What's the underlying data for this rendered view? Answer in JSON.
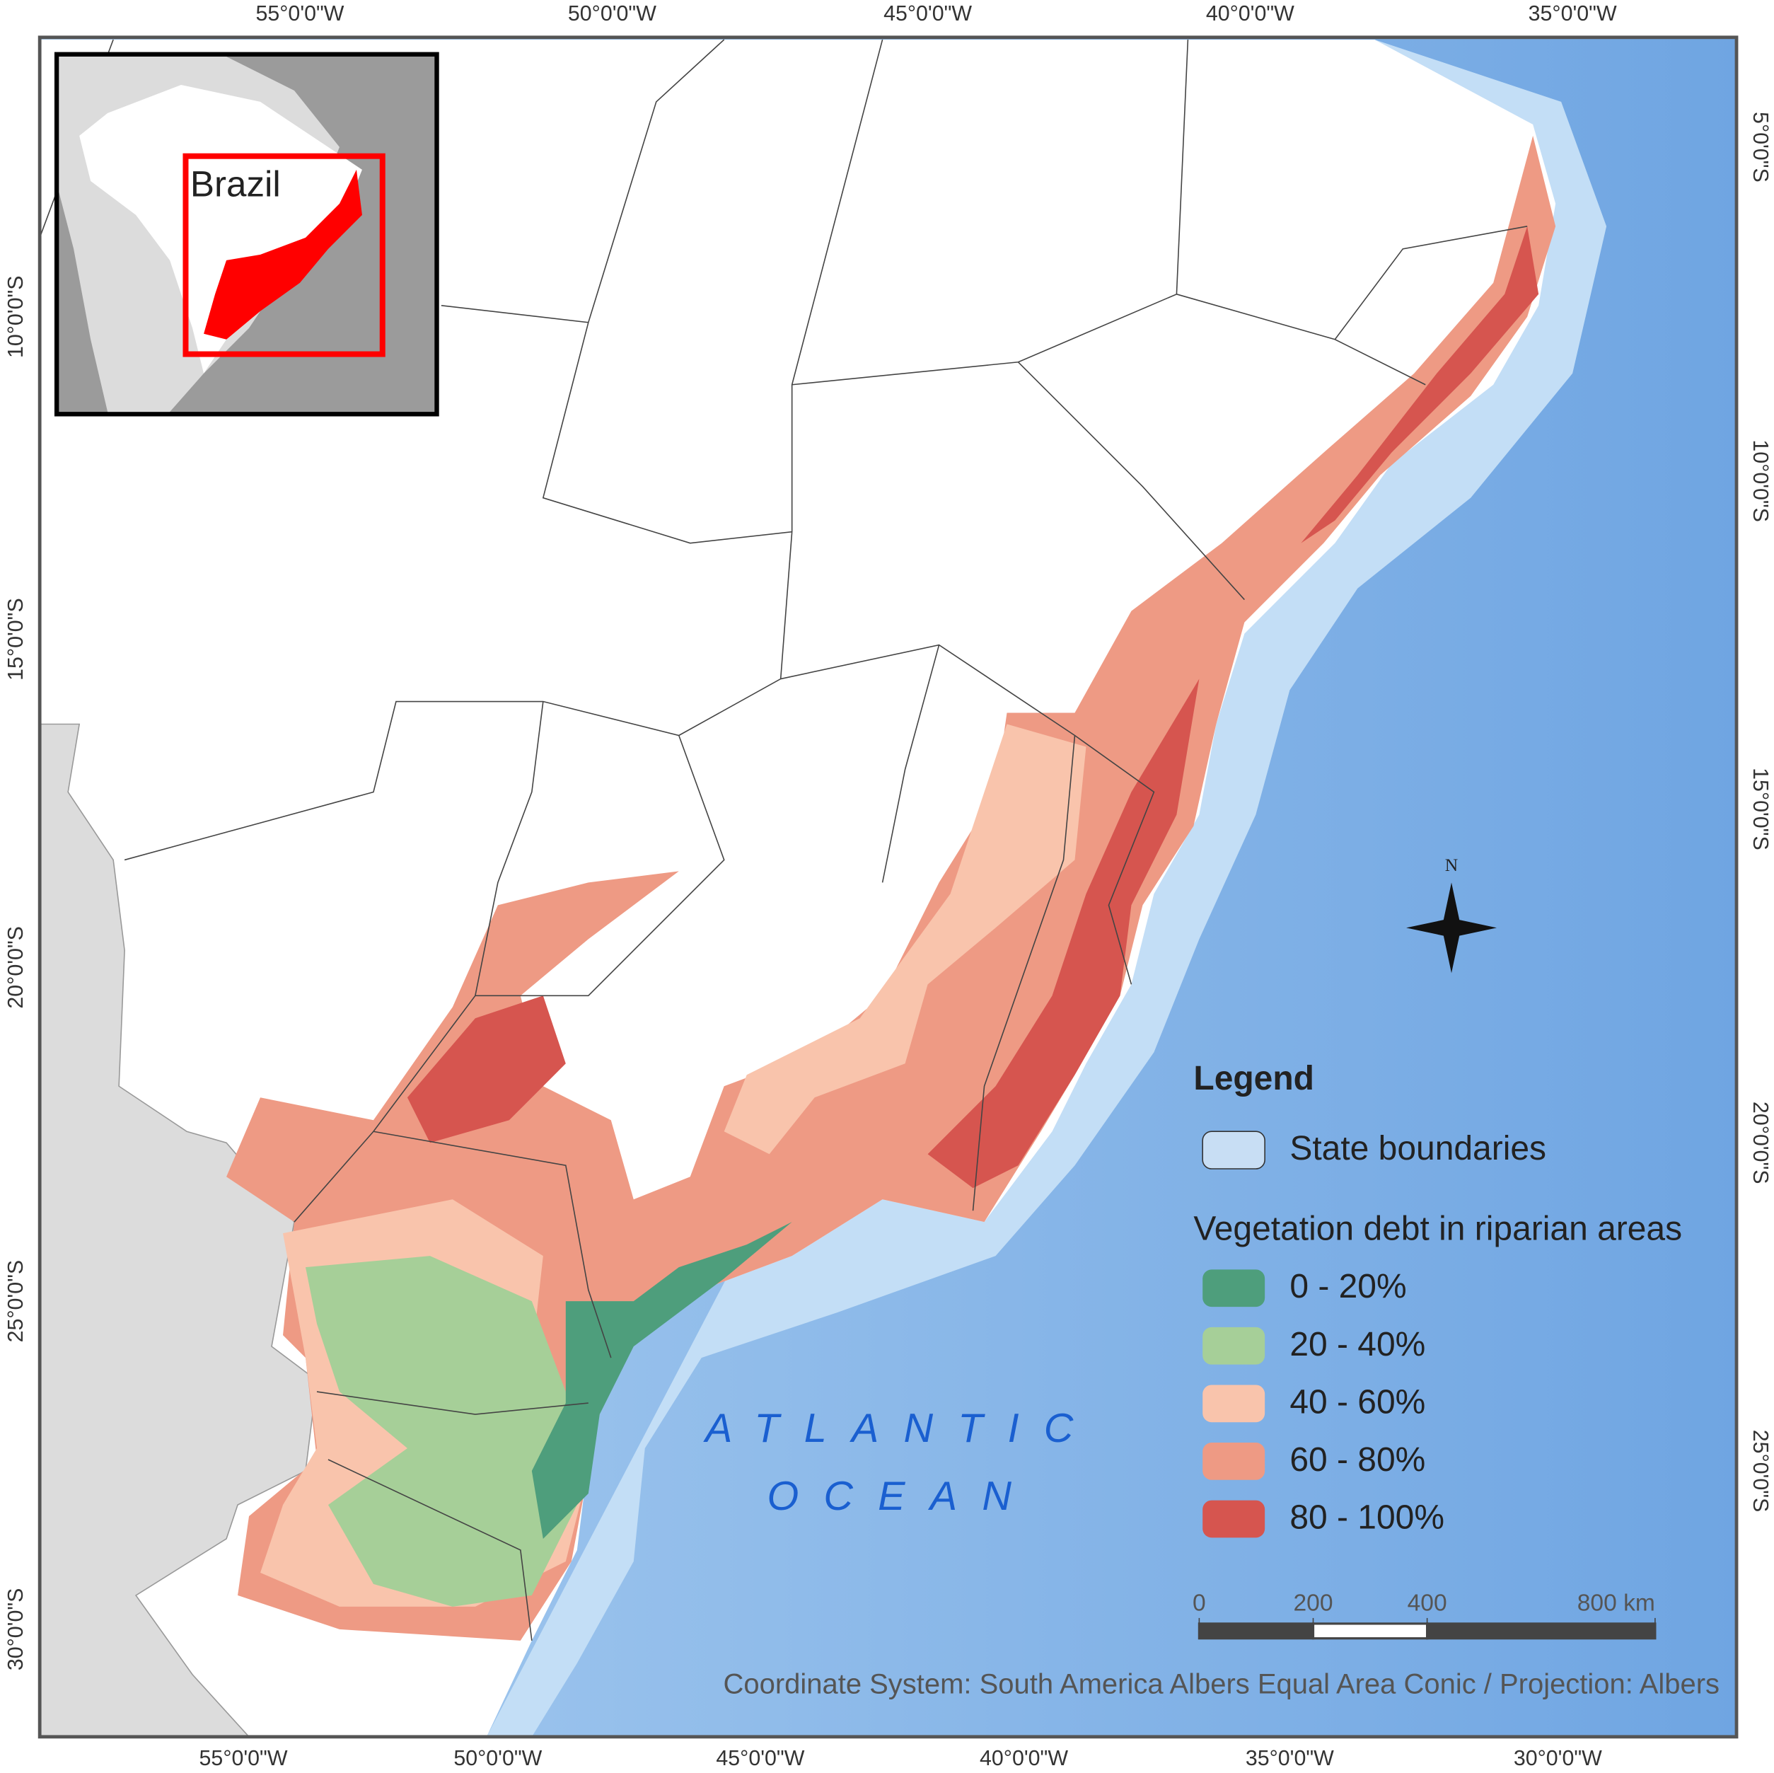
{
  "grid_labels": {
    "top": [
      "55°0'0\"W",
      "50°0'0\"W",
      "45°0'0\"W",
      "40°0'0\"W",
      "35°0'0\"W"
    ],
    "bottom": [
      "55°0'0\"W",
      "50°0'0\"W",
      "45°0'0\"W",
      "40°0'0\"W",
      "35°0'0\"W",
      "30°0'0\"W"
    ],
    "left": [
      "10°0'0\"S",
      "15°0'0\"S",
      "20°0'0\"S",
      "25°0'0\"S",
      "30°0'0\"S"
    ],
    "right": [
      "5°0'0\"S",
      "10°0'0\"S",
      "15°0'0\"S",
      "20°0'0\"S",
      "25°0'0\"S"
    ]
  },
  "inset": {
    "label": "Brazil"
  },
  "ocean_label": [
    "ATLANTIC",
    "OCEAN"
  ],
  "north_arrow": {
    "label": "N"
  },
  "legend": {
    "title": "Legend",
    "boundary_label": "State boundaries",
    "subtitle": "Vegetation debt in riparian areas",
    "classes": [
      {
        "label": "0 - 20%",
        "color": "#4e9e7c"
      },
      {
        "label": "20 - 40%",
        "color": "#a6cf98"
      },
      {
        "label": "40 - 60%",
        "color": "#f9c4ac"
      },
      {
        "label": "60 - 80%",
        "color": "#ee9a84"
      },
      {
        "label": "80 - 100%",
        "color": "#d6554f"
      }
    ]
  },
  "scale_bar": {
    "ticks": [
      0,
      200,
      400,
      {
        "value": 800,
        "label": "800 km"
      }
    ]
  },
  "footer": "Coordinate System: South America Albers Equal Area Conic / Projection: Albers"
}
